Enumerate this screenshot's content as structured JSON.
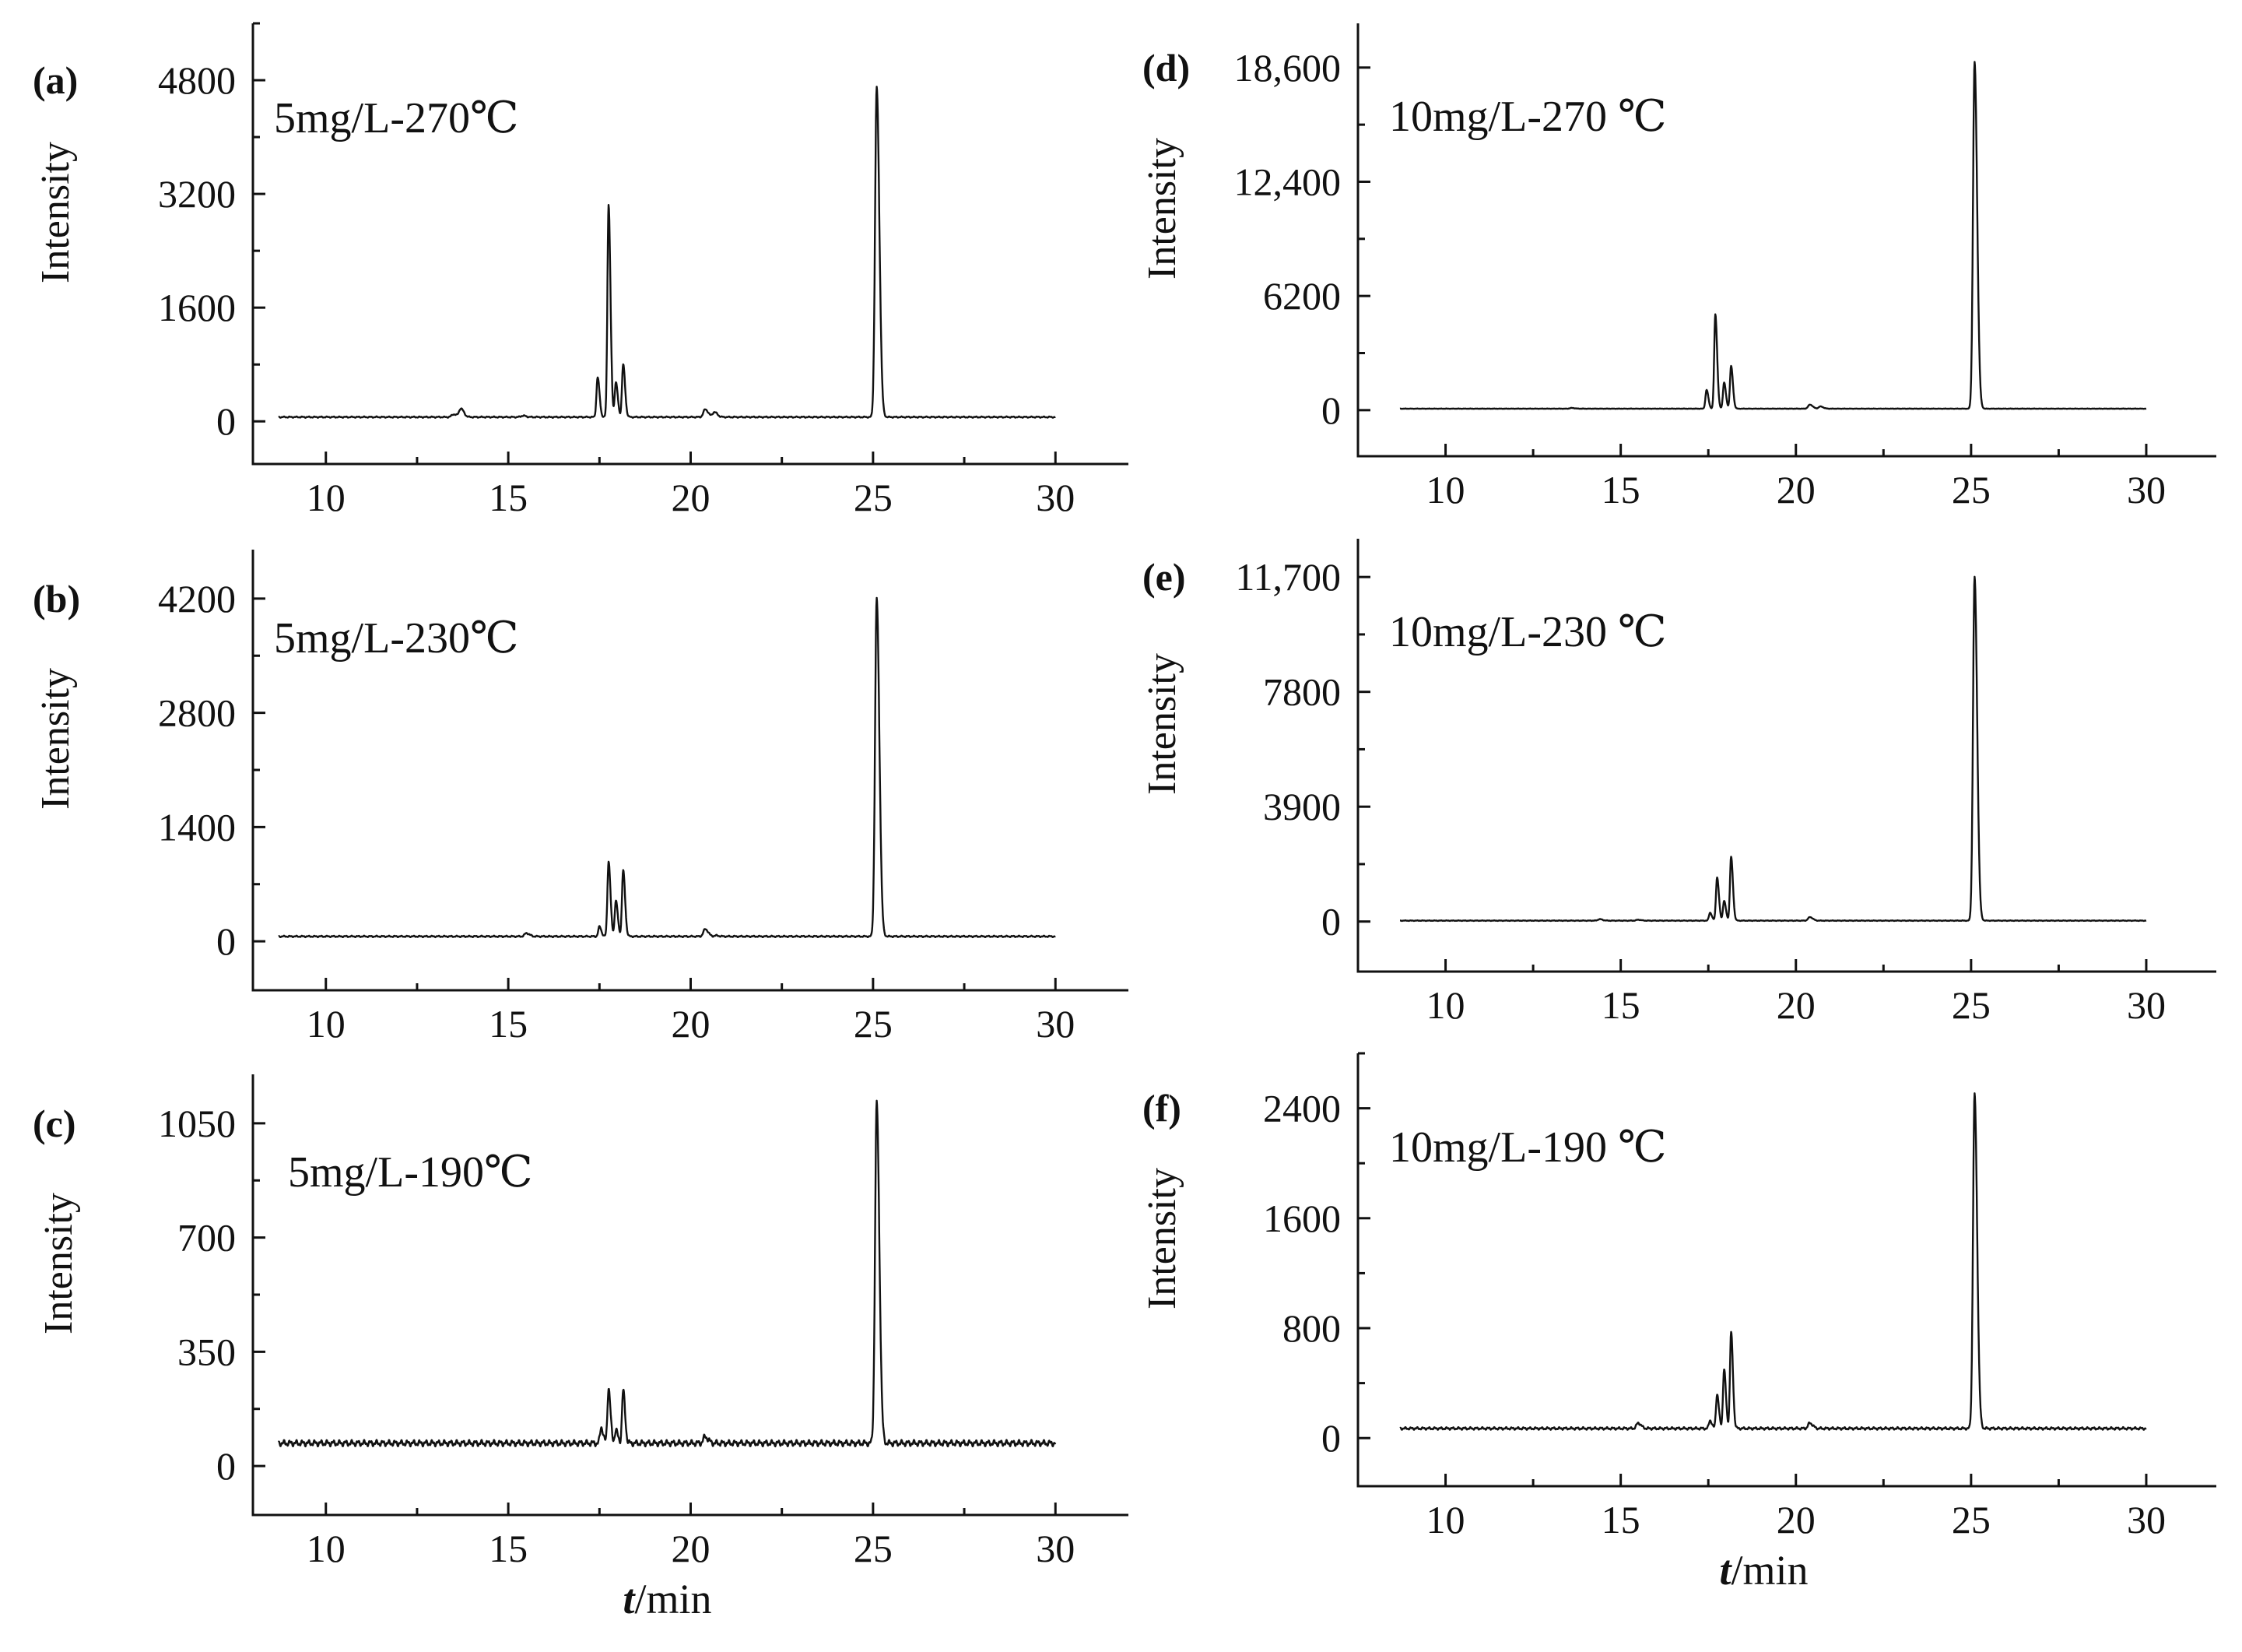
{
  "chart_data": [
    {
      "id": "a",
      "panel_label": "(a)",
      "type": "line",
      "annotation": "5mg/L-270℃",
      "xlabel": "",
      "ylabel": "Intensity",
      "xlim": [
        8,
        32
      ],
      "ylim": [
        -600,
        5600
      ],
      "xticks": [
        10,
        15,
        20,
        25,
        30
      ],
      "xtick_labels": [
        "10",
        "15",
        "20",
        "25",
        "30"
      ],
      "yticks": [
        0,
        1600,
        3200,
        4800
      ],
      "ytick_labels": [
        "0",
        "1600",
        "3200",
        "4800"
      ],
      "series": [
        {
          "x_range": [
            8.7,
            30.0
          ],
          "baseline": 60,
          "peaks": [
            {
              "x": 13.5,
              "y": 100
            },
            {
              "x": 13.7,
              "y": 180
            },
            {
              "x": 15.4,
              "y": 80
            },
            {
              "x": 17.45,
              "y": 620
            },
            {
              "x": 17.75,
              "y": 3050
            },
            {
              "x": 17.95,
              "y": 550
            },
            {
              "x": 18.15,
              "y": 800
            },
            {
              "x": 20.4,
              "y": 170
            },
            {
              "x": 20.65,
              "y": 130
            },
            {
              "x": 25.1,
              "y": 4700
            }
          ]
        }
      ]
    },
    {
      "id": "b",
      "panel_label": "(b)",
      "type": "line",
      "annotation": "5mg/L-230℃",
      "xlabel": "",
      "ylabel": "Intensity",
      "xlim": [
        8,
        32
      ],
      "ylim": [
        -600,
        4800
      ],
      "xticks": [
        10,
        15,
        20,
        25,
        30
      ],
      "xtick_labels": [
        "10",
        "15",
        "20",
        "25",
        "30"
      ],
      "yticks": [
        0,
        1400,
        2800,
        4200
      ],
      "ytick_labels": [
        "0",
        "1400",
        "2800",
        "4200"
      ],
      "series": [
        {
          "x_range": [
            8.7,
            30.0
          ],
          "baseline": 60,
          "peaks": [
            {
              "x": 15.5,
              "y": 40
            },
            {
              "x": 17.5,
              "y": 180
            },
            {
              "x": 17.75,
              "y": 980
            },
            {
              "x": 17.95,
              "y": 500
            },
            {
              "x": 18.15,
              "y": 870
            },
            {
              "x": 20.4,
              "y": 150
            },
            {
              "x": 20.7,
              "y": 70
            },
            {
              "x": 25.1,
              "y": 4200
            }
          ]
        }
      ]
    },
    {
      "id": "c",
      "panel_label": "(c)",
      "type": "line",
      "annotation": "5mg/L-190℃",
      "xlabel": "t/min",
      "ylabel": "Intensity",
      "xlim": [
        8,
        32
      ],
      "ylim": [
        -150,
        1200
      ],
      "xticks": [
        10,
        15,
        20,
        25,
        30
      ],
      "xtick_labels": [
        "10",
        "15",
        "20",
        "25",
        "30"
      ],
      "yticks": [
        0,
        350,
        700,
        1050
      ],
      "ytick_labels": [
        "0",
        "350",
        "700",
        "1050"
      ],
      "series": [
        {
          "x_range": [
            8.7,
            30.0
          ],
          "baseline": 70,
          "peaks": [
            {
              "x": 17.55,
              "y": 50
            },
            {
              "x": 17.75,
              "y": 240
            },
            {
              "x": 17.95,
              "y": 110
            },
            {
              "x": 18.15,
              "y": 230
            },
            {
              "x": 20.4,
              "y": 20
            },
            {
              "x": 25.1,
              "y": 1110
            }
          ]
        }
      ]
    },
    {
      "id": "d",
      "panel_label": "(d)",
      "type": "line",
      "annotation": "10mg/L-270 ℃",
      "xlabel": "",
      "ylabel": "Intensity",
      "xlim": [
        7.5,
        32
      ],
      "ylim": [
        -2500,
        21000
      ],
      "xticks": [
        10,
        15,
        20,
        25,
        30
      ],
      "xtick_labels": [
        "10",
        "15",
        "20",
        "25",
        "30"
      ],
      "yticks": [
        0,
        6200,
        12400,
        18600
      ],
      "ytick_labels": [
        "0",
        "6200",
        "12,400",
        "18,600"
      ],
      "series": [
        {
          "x_range": [
            8.7,
            30.0
          ],
          "baseline": 80,
          "peaks": [
            {
              "x": 13.6,
              "y": 120
            },
            {
              "x": 14.3,
              "y": 80
            },
            {
              "x": 15.4,
              "y": 80
            },
            {
              "x": 17.45,
              "y": 1100
            },
            {
              "x": 17.7,
              "y": 5200
            },
            {
              "x": 17.95,
              "y": 1500
            },
            {
              "x": 18.15,
              "y": 2400
            },
            {
              "x": 20.4,
              "y": 300
            },
            {
              "x": 20.7,
              "y": 200
            },
            {
              "x": 25.1,
              "y": 18900
            }
          ]
        }
      ]
    },
    {
      "id": "e",
      "panel_label": "(e)",
      "type": "line",
      "annotation": "10mg/L-230 ℃",
      "xlabel": "",
      "ylabel": "Intensity",
      "xlim": [
        7.5,
        32
      ],
      "ylim": [
        -1700,
        13000
      ],
      "xticks": [
        10,
        15,
        20,
        25,
        30
      ],
      "xtick_labels": [
        "10",
        "15",
        "20",
        "25",
        "30"
      ],
      "yticks": [
        0,
        3900,
        7800,
        11700
      ],
      "ytick_labels": [
        "0",
        "3900",
        "7800",
        "11,700"
      ],
      "series": [
        {
          "x_range": [
            8.7,
            30.0
          ],
          "baseline": 30,
          "peaks": [
            {
              "x": 14.4,
              "y": 80
            },
            {
              "x": 15.5,
              "y": 60
            },
            {
              "x": 17.55,
              "y": 300
            },
            {
              "x": 17.75,
              "y": 1500
            },
            {
              "x": 17.95,
              "y": 700
            },
            {
              "x": 18.15,
              "y": 2200
            },
            {
              "x": 20.4,
              "y": 150
            },
            {
              "x": 25.1,
              "y": 11700
            }
          ]
        }
      ]
    },
    {
      "id": "f",
      "panel_label": "(f)",
      "type": "line",
      "annotation": "10mg/L-190 ℃",
      "xlabel": "t/min",
      "ylabel": "Intensity",
      "xlim": [
        7.5,
        32
      ],
      "ylim": [
        -350,
        2800
      ],
      "xticks": [
        10,
        15,
        20,
        25,
        30
      ],
      "xtick_labels": [
        "10",
        "15",
        "20",
        "25",
        "30"
      ],
      "yticks": [
        0,
        800,
        1600,
        2400
      ],
      "ytick_labels": [
        "0",
        "800",
        "1600",
        "2400"
      ],
      "series": [
        {
          "x_range": [
            8.7,
            30.0
          ],
          "baseline": 70,
          "peaks": [
            {
              "x": 15.5,
              "y": 40
            },
            {
              "x": 17.55,
              "y": 130
            },
            {
              "x": 17.75,
              "y": 320
            },
            {
              "x": 17.95,
              "y": 500
            },
            {
              "x": 18.15,
              "y": 770
            },
            {
              "x": 20.4,
              "y": 40
            },
            {
              "x": 25.1,
              "y": 2500
            }
          ]
        }
      ]
    }
  ]
}
